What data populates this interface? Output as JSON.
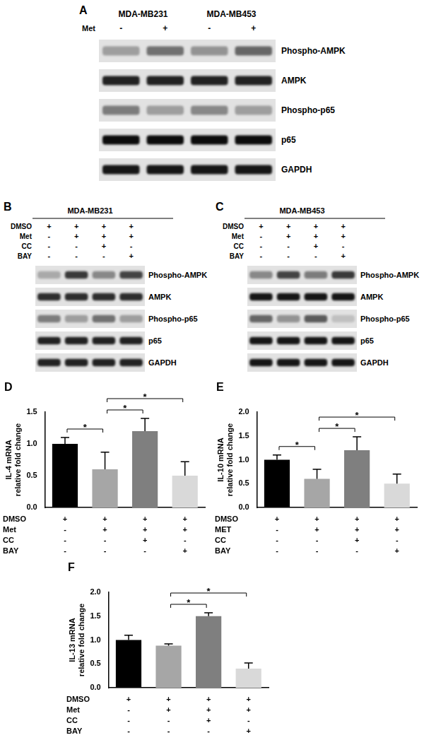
{
  "blots": [
    {
      "panel": "A",
      "groups": [
        "MDA-MB231",
        "MDA-MB453"
      ],
      "treatments": [
        {
          "name": "Met",
          "marks": [
            "-",
            "+",
            "-",
            "+"
          ]
        }
      ],
      "proteins": [
        {
          "name": "Phospho-AMPK",
          "band_intensity": [
            0.3,
            0.5,
            0.35,
            0.55
          ]
        },
        {
          "name": "AMPK",
          "band_intensity": [
            0.85,
            0.85,
            0.85,
            0.85
          ]
        },
        {
          "name": "Phospho-p65",
          "band_intensity": [
            0.45,
            0.3,
            0.4,
            0.3
          ]
        },
        {
          "name": "p65",
          "band_intensity": [
            0.95,
            0.95,
            0.95,
            0.95
          ]
        },
        {
          "name": "GAPDH",
          "band_intensity": [
            0.9,
            0.9,
            0.9,
            0.9
          ]
        }
      ]
    },
    {
      "panel": "B",
      "title": "MDA-MB231",
      "treatments": [
        {
          "name": "DMSO",
          "marks": [
            "+",
            "+",
            "+",
            "+"
          ]
        },
        {
          "name": "Met",
          "marks": [
            "-",
            "+",
            "+",
            "+"
          ]
        },
        {
          "name": "CC",
          "marks": [
            "-",
            "-",
            "+",
            "-"
          ]
        },
        {
          "name": "BAY",
          "marks": [
            "-",
            "-",
            "-",
            "+"
          ]
        }
      ],
      "proteins": [
        {
          "name": "Phospho-AMPK",
          "band_intensity": [
            0.25,
            0.75,
            0.4,
            0.7
          ]
        },
        {
          "name": "AMPK",
          "band_intensity": [
            0.8,
            0.8,
            0.8,
            0.8
          ]
        },
        {
          "name": "Phospho-p65",
          "band_intensity": [
            0.45,
            0.3,
            0.5,
            0.3
          ]
        },
        {
          "name": "p65",
          "band_intensity": [
            0.85,
            0.85,
            0.85,
            0.85
          ]
        },
        {
          "name": "GAPDH",
          "band_intensity": [
            0.85,
            0.85,
            0.85,
            0.85
          ]
        }
      ]
    },
    {
      "panel": "C",
      "title": "MDA-MB453",
      "treatments": [
        {
          "name": "DMSO",
          "marks": [
            "+",
            "+",
            "+",
            "+"
          ]
        },
        {
          "name": "Met",
          "marks": [
            "-",
            "+",
            "+",
            "+"
          ]
        },
        {
          "name": "CC",
          "marks": [
            "-",
            "-",
            "+",
            "-"
          ]
        },
        {
          "name": "BAY",
          "marks": [
            "-",
            "-",
            "-",
            "+"
          ]
        }
      ],
      "proteins": [
        {
          "name": "Phospho-AMPK",
          "band_intensity": [
            0.4,
            0.7,
            0.45,
            0.75
          ]
        },
        {
          "name": "AMPK",
          "band_intensity": [
            0.9,
            0.9,
            0.9,
            0.9
          ]
        },
        {
          "name": "Phospho-p65",
          "band_intensity": [
            0.55,
            0.35,
            0.6,
            0.15
          ]
        },
        {
          "name": "p65",
          "band_intensity": [
            0.9,
            0.9,
            0.9,
            0.9
          ]
        },
        {
          "name": "GAPDH",
          "band_intensity": [
            0.9,
            0.9,
            0.9,
            0.9
          ]
        }
      ]
    }
  ],
  "chart_data": [
    {
      "type": "bar",
      "panel": "D",
      "y_label": [
        "IL-4 mRNA",
        "relative fold change"
      ],
      "categories": [
        null,
        null,
        null,
        null
      ],
      "values": [
        1.0,
        0.6,
        1.2,
        0.5
      ],
      "errors": [
        0.1,
        0.27,
        0.2,
        0.22
      ],
      "colors": [
        "#000000",
        "#a6a6a6",
        "#7f7f7f",
        "#d9d9d9"
      ],
      "ylim": [
        0,
        1.5
      ],
      "yticks": [
        {
          "value": 0,
          "label": "0.0"
        },
        0.5,
        {
          "value": 1,
          "label": "1.0"
        },
        1.5
      ],
      "grid": false,
      "treatments": [
        {
          "name": "DMSO",
          "marks": [
            "+",
            "+",
            "+",
            "+"
          ]
        },
        {
          "name": "Met",
          "marks": [
            "-",
            "+",
            "+",
            "+"
          ]
        },
        {
          "name": "CC",
          "marks": [
            "-",
            "-",
            "+",
            "-"
          ]
        },
        {
          "name": "BAY",
          "marks": [
            "-",
            "-",
            "-",
            "+"
          ]
        }
      ],
      "significance": [
        {
          "pair": [
            0,
            1
          ],
          "label": "*"
        },
        {
          "pair": [
            1,
            2
          ],
          "label": "*"
        },
        {
          "pair": [
            1,
            3
          ],
          "label": "*"
        }
      ]
    },
    {
      "type": "bar",
      "panel": "E",
      "y_label": [
        "IL-10 mRNA",
        "relative fold change"
      ],
      "categories": [
        null,
        null,
        null,
        null
      ],
      "values": [
        1.0,
        0.6,
        1.2,
        0.5
      ],
      "errors": [
        0.1,
        0.2,
        0.28,
        0.2
      ],
      "colors": [
        "#000000",
        "#a6a6a6",
        "#7f7f7f",
        "#d9d9d9"
      ],
      "ylim": [
        0,
        2
      ],
      "yticks": [
        {
          "value": 0,
          "label": "0.0"
        },
        0.5,
        {
          "value": 1,
          "label": "1.0"
        },
        1.5,
        {
          "value": 2,
          "label": "2.0"
        }
      ],
      "grid": false,
      "treatments": [
        {
          "name": "DMSO",
          "marks": [
            "+",
            "+",
            "+",
            "+"
          ]
        },
        {
          "name": "MET",
          "marks": [
            "-",
            "+",
            "+",
            "+"
          ]
        },
        {
          "name": "CC",
          "marks": [
            "-",
            "-",
            "+",
            "-"
          ]
        },
        {
          "name": "BAY",
          "marks": [
            "-",
            "-",
            "-",
            "+"
          ]
        }
      ],
      "significance": [
        {
          "pair": [
            0,
            1
          ],
          "label": "*"
        },
        {
          "pair": [
            1,
            2
          ],
          "label": "*"
        },
        {
          "pair": [
            1,
            3
          ],
          "label": "*"
        }
      ]
    },
    {
      "type": "bar",
      "panel": "F",
      "y_label": [
        "IL-13 mRNA",
        "relative fold change"
      ],
      "categories": [
        null,
        null,
        null,
        null
      ],
      "values": [
        1.0,
        0.88,
        1.5,
        0.4
      ],
      "errors": [
        0.1,
        0.04,
        0.07,
        0.12
      ],
      "colors": [
        "#000000",
        "#a6a6a6",
        "#7f7f7f",
        "#d9d9d9"
      ],
      "ylim": [
        0,
        2
      ],
      "yticks": [
        {
          "value": 0,
          "label": "0.0"
        },
        0.5,
        {
          "value": 1,
          "label": "1.0"
        },
        1.5,
        {
          "value": 2,
          "label": "2.0"
        }
      ],
      "grid": false,
      "treatments": [
        {
          "name": "DMSO",
          "marks": [
            "+",
            "+",
            "+",
            "+"
          ]
        },
        {
          "name": "Met",
          "marks": [
            "-",
            "+",
            "+",
            "+"
          ]
        },
        {
          "name": "CC",
          "marks": [
            "-",
            "-",
            "+",
            "-"
          ]
        },
        {
          "name": "BAY",
          "marks": [
            "-",
            "-",
            "-",
            "+"
          ]
        }
      ],
      "significance": [
        {
          "pair": [
            1,
            2
          ],
          "label": "*"
        },
        {
          "pair": [
            1,
            3
          ],
          "label": "*"
        }
      ]
    }
  ]
}
